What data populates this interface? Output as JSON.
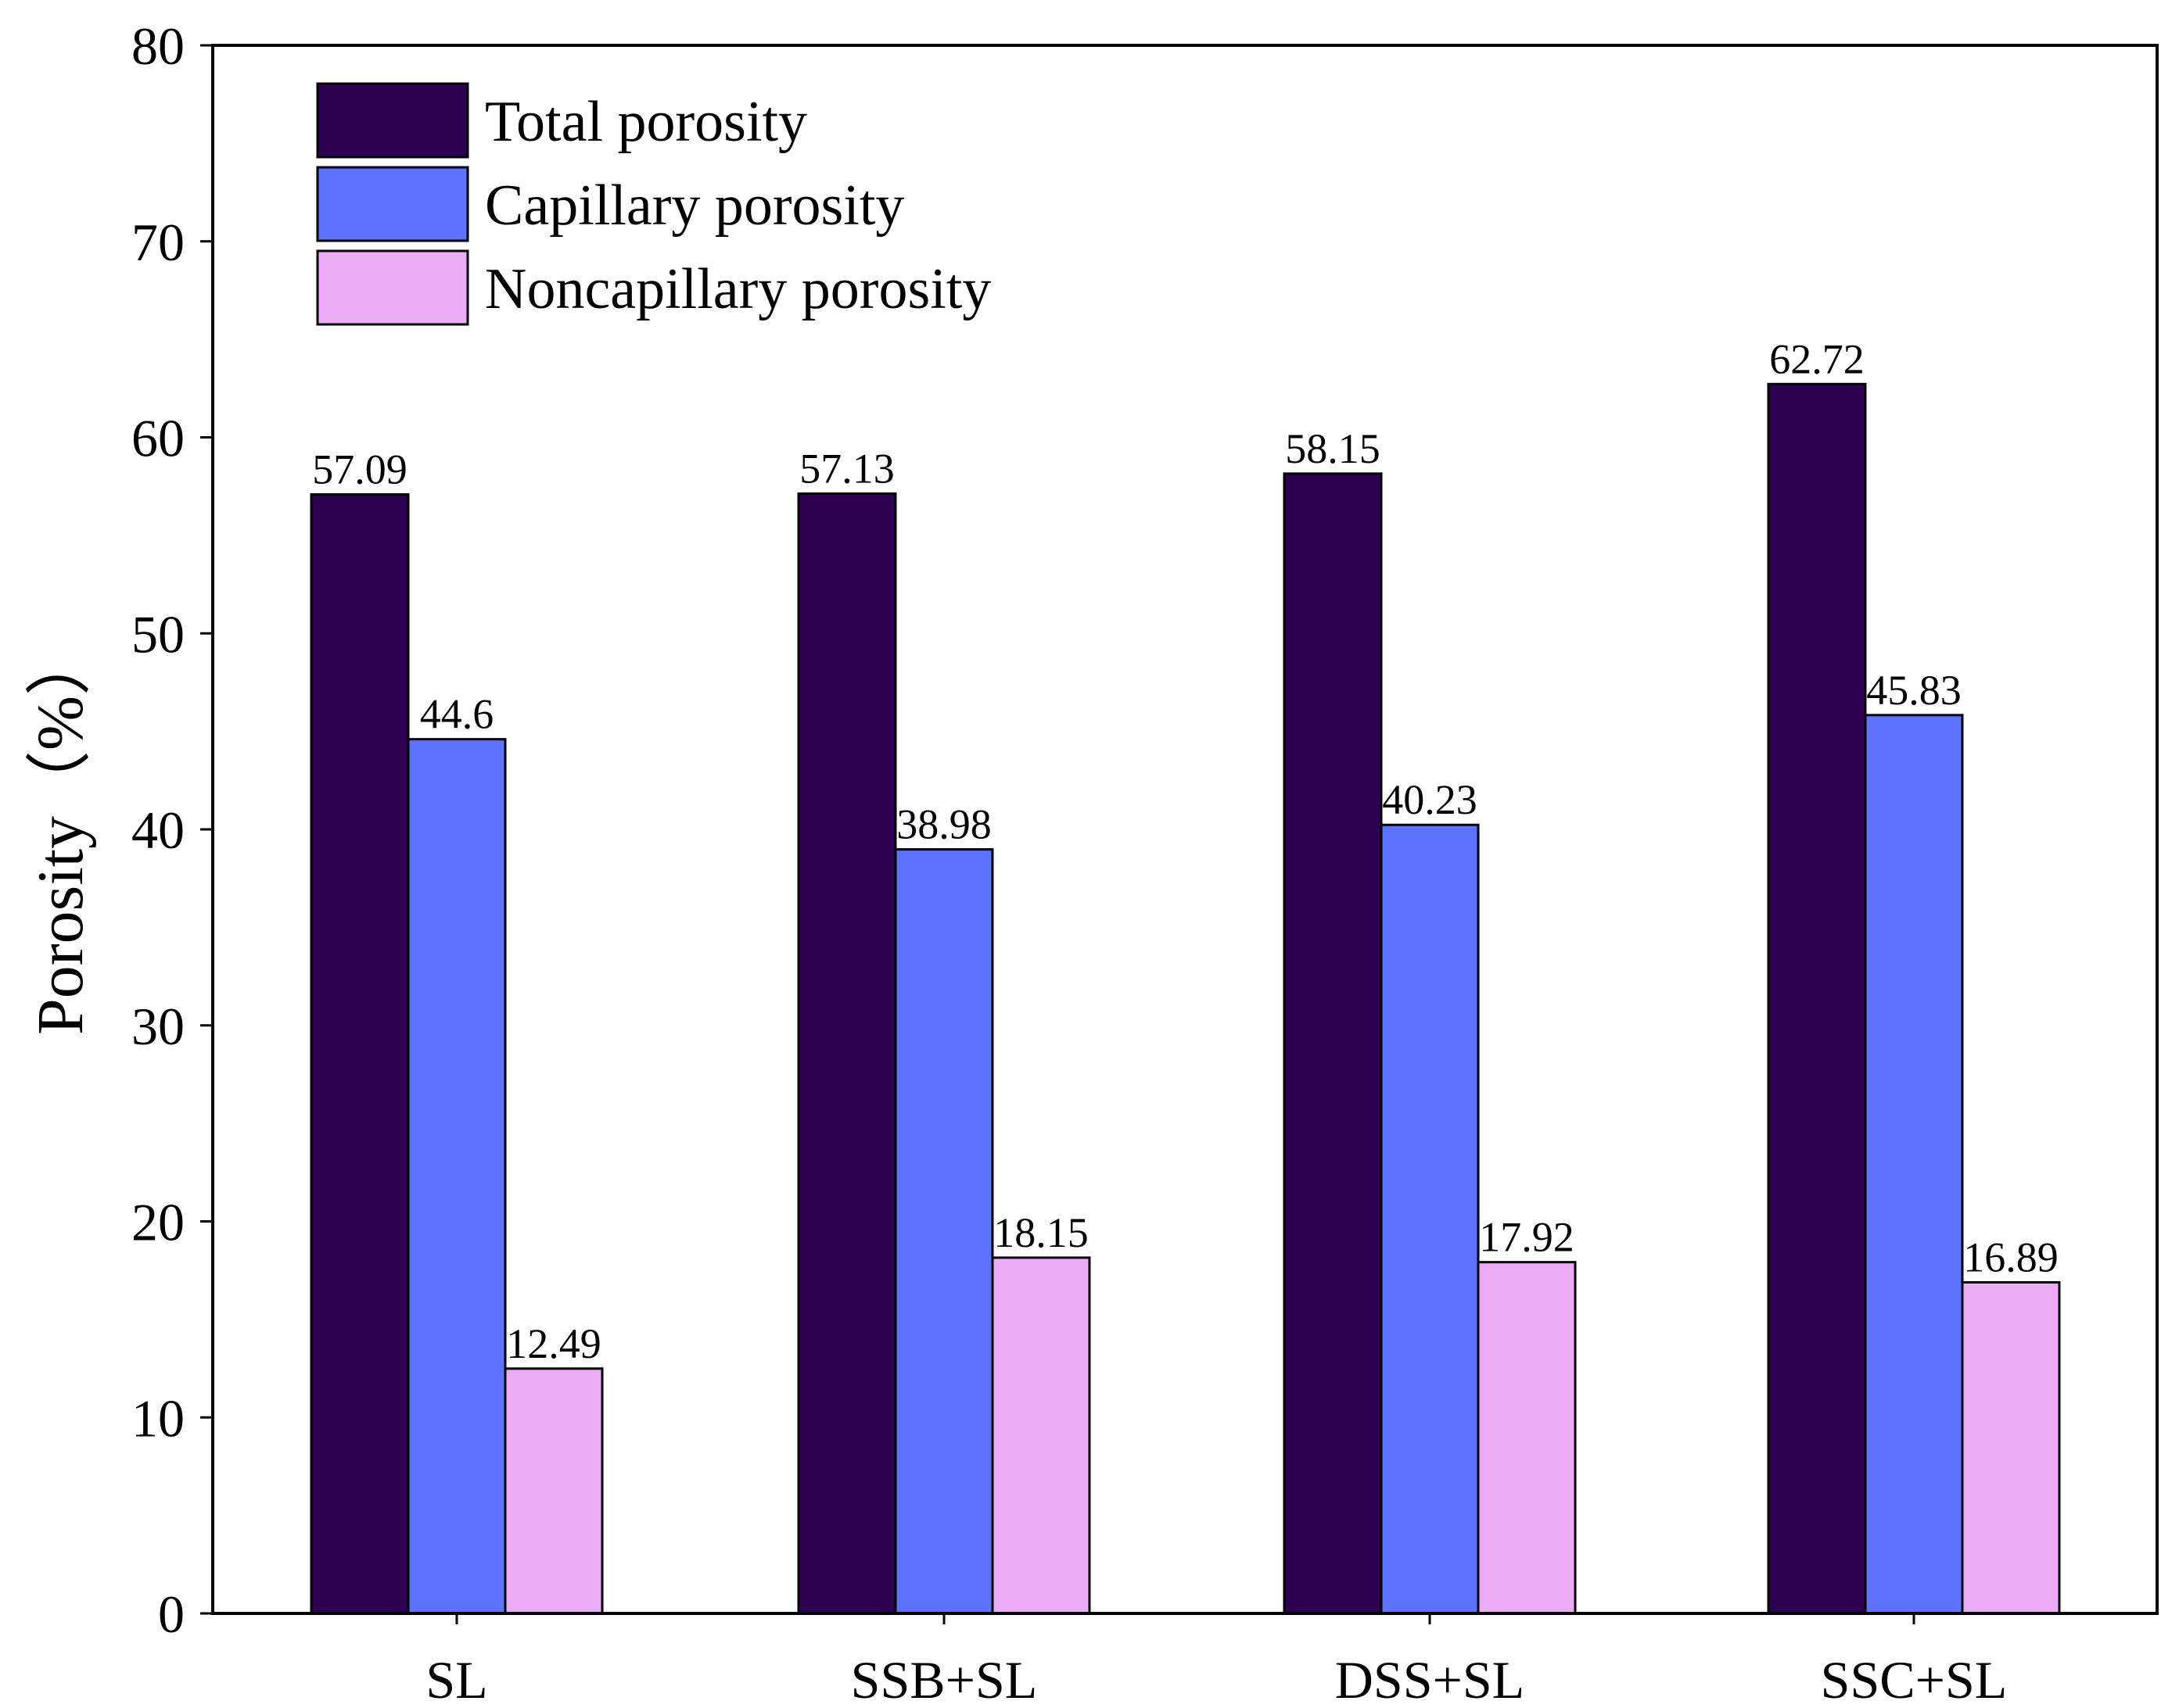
{
  "chart_data": {
    "type": "bar",
    "title": "",
    "xlabel": "",
    "ylabel": "Porosity（%）",
    "ylim": [
      0,
      80
    ],
    "yticks": [
      0,
      10,
      20,
      30,
      40,
      50,
      60,
      70,
      80
    ],
    "grid": false,
    "legend_position": "top-left",
    "categories": [
      "SL",
      "SSB+SL",
      "DSS+SL",
      "SSC+SL"
    ],
    "series": [
      {
        "name": "Total porosity",
        "color": "#2e0052",
        "values": [
          57.09,
          57.13,
          58.15,
          62.72
        ],
        "labels": [
          "57.09",
          "57.13",
          "58.15",
          "62.72"
        ]
      },
      {
        "name": "Capillary porosity",
        "color": "#5c73ff",
        "values": [
          44.6,
          38.98,
          40.23,
          45.83
        ],
        "labels": [
          "44.6",
          "38.98",
          "40.23",
          "45.83"
        ]
      },
      {
        "name": "Noncapillary porosity",
        "color": "#ebabf7",
        "values": [
          12.49,
          18.15,
          17.92,
          16.89
        ],
        "labels": [
          "12.49",
          "18.15",
          "17.92",
          "16.89"
        ]
      }
    ]
  }
}
